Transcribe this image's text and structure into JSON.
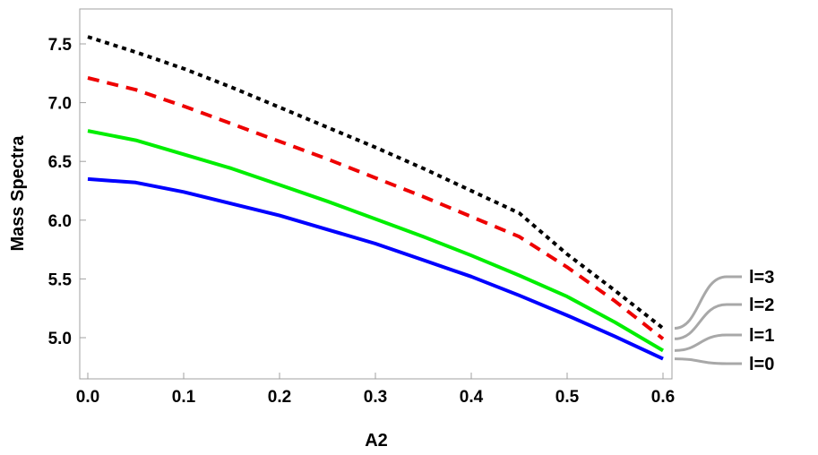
{
  "chart_data": {
    "type": "line",
    "title": "",
    "xlabel": "A2",
    "ylabel": "Mass Spectra",
    "xlim": [
      0,
      0.6
    ],
    "ylim": [
      4.7,
      7.75
    ],
    "xticks": [
      "0.0",
      "0.1",
      "0.2",
      "0.3",
      "0.4",
      "0.5",
      "0.6"
    ],
    "yticks": [
      "5.0",
      "5.5",
      "6.0",
      "6.5",
      "7.0",
      "7.5"
    ],
    "grid": false,
    "legend_placement": "right-end-callouts",
    "x": [
      0.0,
      0.05,
      0.1,
      0.15,
      0.2,
      0.25,
      0.3,
      0.35,
      0.4,
      0.45,
      0.5,
      0.55,
      0.6
    ],
    "series": [
      {
        "name": "l=0",
        "color": "#0000ff",
        "dash": "solid",
        "values": [
          6.35,
          6.32,
          6.24,
          6.14,
          6.04,
          5.92,
          5.8,
          5.66,
          5.52,
          5.36,
          5.19,
          5.01,
          4.82
        ]
      },
      {
        "name": "l=1",
        "color": "#00ee00",
        "dash": "solid",
        "values": [
          6.76,
          6.68,
          6.56,
          6.44,
          6.3,
          6.16,
          6.01,
          5.86,
          5.7,
          5.53,
          5.35,
          5.13,
          4.89
        ]
      },
      {
        "name": "l=2",
        "color": "#ee0000",
        "dash": "dashed",
        "values": [
          7.21,
          7.11,
          6.97,
          6.82,
          6.67,
          6.52,
          6.36,
          6.2,
          6.03,
          5.86,
          5.6,
          5.31,
          4.99
        ]
      },
      {
        "name": "l=3",
        "color": "#000000",
        "dash": "dotted",
        "values": [
          7.56,
          7.43,
          7.29,
          7.13,
          6.96,
          6.79,
          6.62,
          6.44,
          6.25,
          6.06,
          5.71,
          5.4,
          5.08
        ]
      }
    ]
  }
}
